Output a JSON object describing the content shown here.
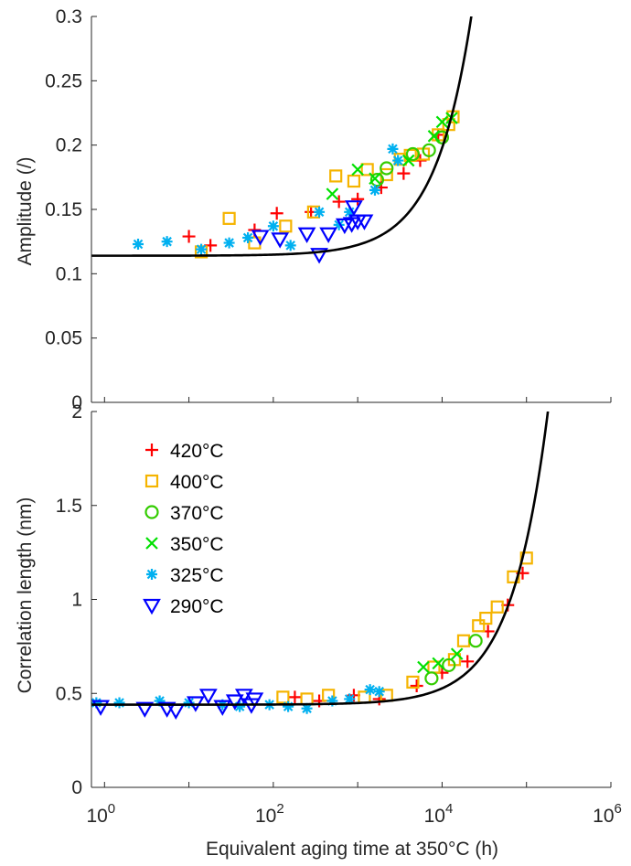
{
  "chart_data": [
    {
      "type": "scatter",
      "panel": "top",
      "title": "",
      "xlabel": "",
      "ylabel": "Amplitude (/)",
      "xscale": "log",
      "xlim": [
        0.7,
        1000000
      ],
      "ylim": [
        0,
        0.3
      ],
      "yticks": [
        0,
        0.05,
        0.1,
        0.15,
        0.2,
        0.25,
        0.3
      ],
      "ytick_labels": [
        "0",
        "0.05",
        "0.1",
        "0.15",
        "0.2",
        "0.25",
        "0.3"
      ],
      "grid": false,
      "fit_curve": {
        "color": "#000000",
        "a": 0.114,
        "b": 8.38e-06
      },
      "series": [
        {
          "name": "420°C",
          "marker": "plus",
          "color": "#ff0000",
          "points": [
            [
              10,
              0.129
            ],
            [
              18,
              0.122
            ],
            [
              60,
              0.134
            ],
            [
              110,
              0.147
            ],
            [
              280,
              0.148
            ],
            [
              600,
              0.156
            ],
            [
              1000,
              0.158
            ],
            [
              1900,
              0.167
            ],
            [
              3500,
              0.178
            ],
            [
              5500,
              0.188
            ],
            [
              9000,
              0.208
            ]
          ]
        },
        {
          "name": "400°C",
          "marker": "square",
          "color": "#f5b400",
          "points": [
            [
              14,
              0.117
            ],
            [
              30,
              0.143
            ],
            [
              60,
              0.124
            ],
            [
              140,
              0.137
            ],
            [
              300,
              0.148
            ],
            [
              550,
              0.176
            ],
            [
              900,
              0.172
            ],
            [
              1300,
              0.181
            ],
            [
              2200,
              0.177
            ],
            [
              3200,
              0.189
            ],
            [
              4200,
              0.192
            ],
            [
              6000,
              0.193
            ],
            [
              9000,
              0.208
            ],
            [
              12000,
              0.216
            ],
            [
              13500,
              0.222
            ]
          ]
        },
        {
          "name": "370°C",
          "marker": "circle",
          "color": "#33cc00",
          "points": [
            [
              1700,
              0.173
            ],
            [
              2200,
              0.182
            ],
            [
              4500,
              0.193
            ],
            [
              7000,
              0.196
            ],
            [
              10000,
              0.206
            ]
          ]
        },
        {
          "name": "350°C",
          "marker": "x",
          "color": "#00e000",
          "points": [
            [
              500,
              0.162
            ],
            [
              1000,
              0.181
            ],
            [
              1600,
              0.174
            ],
            [
              4000,
              0.188
            ],
            [
              8000,
              0.207
            ],
            [
              10000,
              0.218
            ],
            [
              13000,
              0.221
            ]
          ]
        },
        {
          "name": "325°C",
          "marker": "asterisk",
          "color": "#00b0f0",
          "points": [
            [
              2.5,
              0.123
            ],
            [
              5.5,
              0.125
            ],
            [
              14,
              0.119
            ],
            [
              30,
              0.124
            ],
            [
              50,
              0.128
            ],
            [
              100,
              0.137
            ],
            [
              160,
              0.122
            ],
            [
              350,
              0.148
            ],
            [
              600,
              0.138
            ],
            [
              800,
              0.148
            ],
            [
              1600,
              0.165
            ],
            [
              2600,
              0.197
            ],
            [
              3000,
              0.188
            ]
          ]
        },
        {
          "name": "290°C",
          "marker": "triangle-down",
          "color": "#0000ff",
          "points": [
            [
              70,
              0.129
            ],
            [
              120,
              0.127
            ],
            [
              250,
              0.131
            ],
            [
              350,
              0.115
            ],
            [
              450,
              0.131
            ],
            [
              700,
              0.138
            ],
            [
              850,
              0.139
            ],
            [
              1000,
              0.141
            ],
            [
              1200,
              0.141
            ],
            [
              900,
              0.152
            ]
          ]
        }
      ]
    },
    {
      "type": "scatter",
      "panel": "bottom",
      "title": "",
      "xlabel": "Equivalent aging time at 350°C (h)",
      "ylabel": "Correlation length (nm)",
      "xscale": "log",
      "xlim": [
        0.7,
        1000000
      ],
      "xticks": [
        1,
        100,
        10000,
        1000000
      ],
      "xtick_bases": [
        "10",
        "10",
        "10",
        "10"
      ],
      "xtick_exponents": [
        "0",
        "2",
        "4",
        "6"
      ],
      "ylim": [
        0,
        2
      ],
      "yticks": [
        0,
        0.5,
        1,
        1.5,
        2
      ],
      "ytick_labels": [
        "0",
        "0.5",
        "1",
        "1.5",
        "2"
      ],
      "grid": false,
      "legend": "top-left",
      "fit_curve": {
        "color": "#000000",
        "a": 0.44,
        "b": 8.7e-06
      },
      "series": [
        {
          "name": "420°C",
          "marker": "plus",
          "color": "#ff0000",
          "points": [
            [
              180,
              0.48
            ],
            [
              350,
              0.46
            ],
            [
              900,
              0.49
            ],
            [
              1800,
              0.47
            ],
            [
              5000,
              0.54
            ],
            [
              10000,
              0.61
            ],
            [
              20000,
              0.67
            ],
            [
              35000,
              0.83
            ],
            [
              60000,
              0.97
            ],
            [
              90000,
              1.14
            ]
          ]
        },
        {
          "name": "400°C",
          "marker": "square",
          "color": "#f5b400",
          "points": [
            [
              130,
              0.48
            ],
            [
              250,
              0.47
            ],
            [
              450,
              0.49
            ],
            [
              1200,
              0.48
            ],
            [
              2200,
              0.49
            ],
            [
              4500,
              0.56
            ],
            [
              8000,
              0.64
            ],
            [
              14000,
              0.68
            ],
            [
              18000,
              0.78
            ],
            [
              27000,
              0.86
            ],
            [
              33000,
              0.9
            ],
            [
              45000,
              0.96
            ],
            [
              70000,
              1.12
            ],
            [
              100000,
              1.22
            ]
          ]
        },
        {
          "name": "370°C",
          "marker": "circle",
          "color": "#33cc00",
          "points": [
            [
              7500,
              0.58
            ],
            [
              12000,
              0.65
            ],
            [
              25000,
              0.78
            ]
          ]
        },
        {
          "name": "350°C",
          "marker": "x",
          "color": "#00e000",
          "points": [
            [
              6000,
              0.64
            ],
            [
              9000,
              0.66
            ],
            [
              15000,
              0.71
            ]
          ]
        },
        {
          "name": "325°C",
          "marker": "asterisk",
          "color": "#00b0f0",
          "points": [
            [
              0.8,
              0.45
            ],
            [
              1.5,
              0.45
            ],
            [
              4.5,
              0.46
            ],
            [
              10,
              0.45
            ],
            [
              25,
              0.44
            ],
            [
              40,
              0.43
            ],
            [
              90,
              0.44
            ],
            [
              150,
              0.43
            ],
            [
              250,
              0.42
            ],
            [
              500,
              0.46
            ],
            [
              800,
              0.47
            ],
            [
              1400,
              0.52
            ],
            [
              1800,
              0.51
            ]
          ]
        },
        {
          "name": "290°C",
          "marker": "triangle-down",
          "color": "#0000ff",
          "points": [
            [
              0.9,
              0.43
            ],
            [
              3,
              0.42
            ],
            [
              5.5,
              0.42
            ],
            [
              7,
              0.41
            ],
            [
              12,
              0.45
            ],
            [
              17,
              0.49
            ],
            [
              25,
              0.43
            ],
            [
              35,
              0.46
            ],
            [
              45,
              0.49
            ],
            [
              55,
              0.44
            ],
            [
              60,
              0.47
            ]
          ]
        }
      ]
    }
  ]
}
